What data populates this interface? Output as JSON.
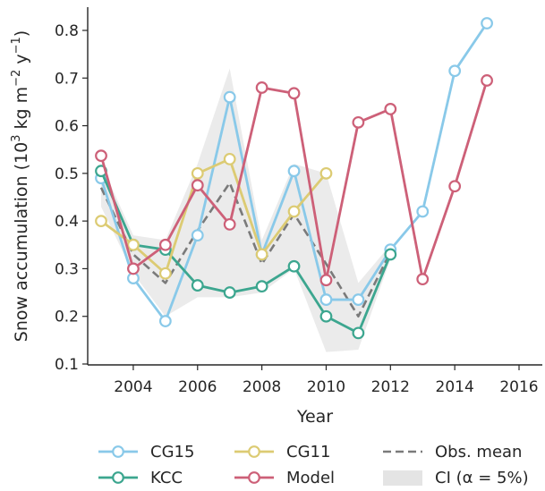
{
  "chart_data": {
    "type": "line",
    "xlabel": "Year",
    "ylabel_parts": [
      "Snow accumulation (10",
      "3",
      " kg m",
      "−2",
      " y",
      "−1",
      ")"
    ],
    "xlim": [
      2002.5,
      2016.8
    ],
    "ylim": [
      0.09,
      0.85
    ],
    "xticks": [
      2004,
      2006,
      2008,
      2010,
      2012,
      2014,
      2016
    ],
    "yticks": [
      0.1,
      0.2,
      0.3,
      0.4,
      0.5,
      0.6,
      0.7,
      0.8
    ],
    "grid": false,
    "legend_position": "bottom",
    "series": [
      {
        "name": "CG15",
        "color": "#89c9e9",
        "style": "line-marker",
        "x": [
          2003,
          2004,
          2005,
          2006,
          2007,
          2008,
          2009,
          2010,
          2011,
          2012,
          2013,
          2014,
          2015
        ],
        "y": [
          0.49,
          0.28,
          0.19,
          0.37,
          0.66,
          0.33,
          0.505,
          0.235,
          0.235,
          0.34,
          0.42,
          0.715,
          0.815
        ]
      },
      {
        "name": "KCC",
        "color": "#3ca68f",
        "style": "line-marker",
        "x": [
          2003,
          2004,
          2005,
          2006,
          2007,
          2008,
          2009,
          2010,
          2011,
          2012
        ],
        "y": [
          0.505,
          0.35,
          0.34,
          0.265,
          0.25,
          0.263,
          0.305,
          0.2,
          0.165,
          0.33
        ]
      },
      {
        "name": "CG11",
        "color": "#dccb73",
        "style": "line-marker",
        "x": [
          2003,
          2004,
          2005,
          2006,
          2007,
          2008,
          2009,
          2010
        ],
        "y": [
          0.4,
          0.35,
          0.29,
          0.5,
          0.53,
          0.33,
          0.42,
          0.5
        ]
      },
      {
        "name": "Model",
        "color": "#cd6078",
        "style": "line-marker",
        "x": [
          2003,
          2004,
          2005,
          2006,
          2007,
          2008,
          2009,
          2010,
          2011,
          2012,
          2013,
          2014,
          2015
        ],
        "y": [
          0.537,
          0.3,
          0.35,
          0.475,
          0.393,
          0.68,
          0.668,
          0.276,
          0.607,
          0.635,
          0.278,
          0.473,
          0.695
        ]
      },
      {
        "name": "Obs. mean",
        "color": "#7a7a7a",
        "style": "dashed",
        "x": [
          2003,
          2004,
          2005,
          2006,
          2007,
          2008,
          2009,
          2010,
          2011,
          2012
        ],
        "y": [
          0.47,
          0.33,
          0.27,
          0.38,
          0.48,
          0.31,
          0.415,
          0.31,
          0.2,
          0.335
        ]
      }
    ],
    "ci_band": {
      "name": "CI (α = 5%)",
      "color": "#e4e4e4",
      "x": [
        2003,
        2004,
        2005,
        2006,
        2007,
        2008,
        2009,
        2010,
        2011,
        2012
      ],
      "lower": [
        0.43,
        0.29,
        0.2,
        0.24,
        0.24,
        0.25,
        0.3,
        0.125,
        0.13,
        0.32
      ],
      "upper": [
        0.52,
        0.37,
        0.36,
        0.52,
        0.72,
        0.36,
        0.52,
        0.5,
        0.27,
        0.35
      ]
    },
    "legend_order": [
      "CG15",
      "CG11",
      "Obs. mean",
      "KCC",
      "Model",
      "CI (α = 5%)"
    ]
  }
}
